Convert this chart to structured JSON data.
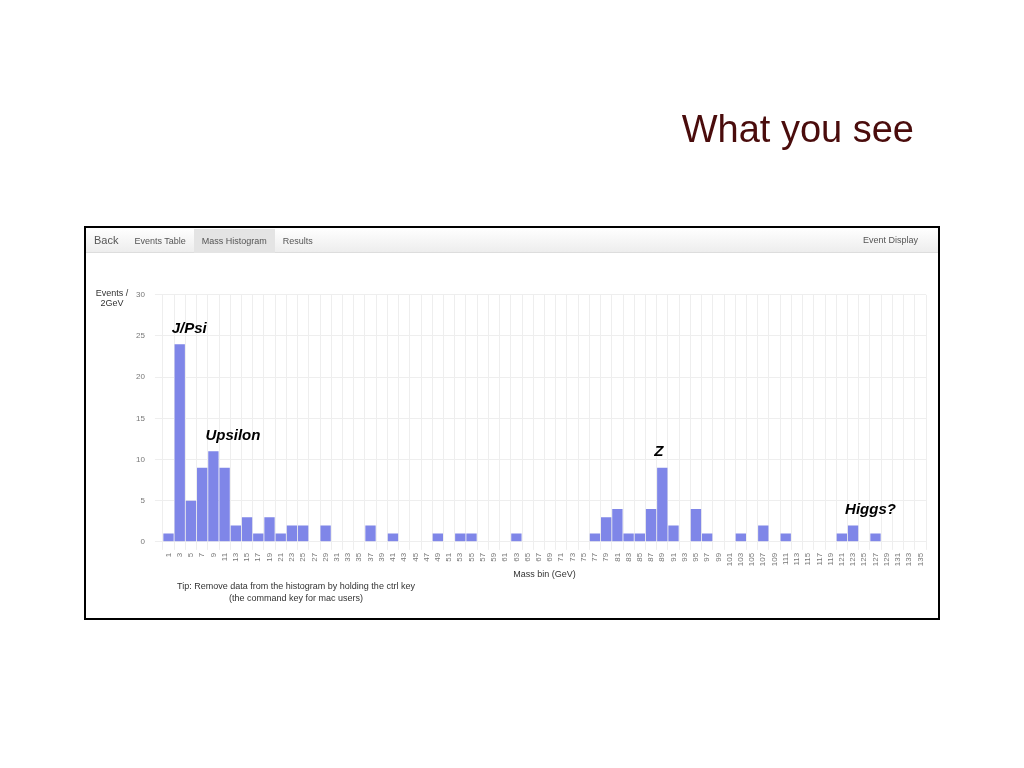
{
  "chart_data": {
    "type": "bar",
    "title": "What you see",
    "xlabel": "Mass bin (GeV)",
    "ylabel": "Events / 2GeV",
    "categories": [
      "1",
      "3",
      "5",
      "7",
      "9",
      "11",
      "13",
      "15",
      "17",
      "19",
      "21",
      "23",
      "25",
      "27",
      "29",
      "31",
      "33",
      "35",
      "37",
      "39",
      "41",
      "43",
      "45",
      "47",
      "49",
      "51",
      "53",
      "55",
      "57",
      "59",
      "61",
      "63",
      "65",
      "67",
      "69",
      "71",
      "73",
      "75",
      "77",
      "79",
      "81",
      "83",
      "85",
      "87",
      "89",
      "91",
      "93",
      "95",
      "97",
      "99",
      "101",
      "103",
      "105",
      "107",
      "109",
      "111",
      "113",
      "115",
      "117",
      "119",
      "121",
      "123",
      "125",
      "127",
      "129",
      "131",
      "133",
      "135"
    ],
    "series": [
      {
        "color": "#7f86e8",
        "values": [
          1,
          24,
          5,
          9,
          11,
          9,
          2,
          3,
          1,
          3,
          1,
          2,
          2,
          0,
          2,
          0,
          0,
          0,
          2,
          0,
          1,
          0,
          0,
          0,
          1,
          0,
          1,
          1,
          0,
          0,
          0,
          1,
          0,
          0,
          0,
          0,
          0,
          0,
          1,
          3,
          4,
          1,
          1,
          4,
          9,
          2,
          0,
          4,
          1,
          0,
          0,
          1,
          0,
          2,
          0,
          1,
          0,
          0,
          0,
          0,
          1,
          2,
          0,
          1,
          0,
          0,
          0,
          0
        ]
      }
    ],
    "ylim": [
      0,
      30
    ],
    "yticks": [
      0,
      5,
      10,
      15,
      20,
      25,
      30
    ],
    "grid": true,
    "legend": false,
    "annotations": [
      {
        "text": "J/Psi",
        "x": "3",
        "y": 24
      },
      {
        "text": "Upsilon",
        "x": "9",
        "y": 11
      },
      {
        "text": "Z",
        "x": "89",
        "y": 9
      },
      {
        "text": "Higgs?",
        "x": "123",
        "y": 2
      },
      "Back",
      "Events Table",
      "Mass Histogram",
      "Results",
      "Event Display",
      "Tip: Remove data from the histogram by holding the ctrl key",
      "(the command key for mac users)"
    ]
  }
}
